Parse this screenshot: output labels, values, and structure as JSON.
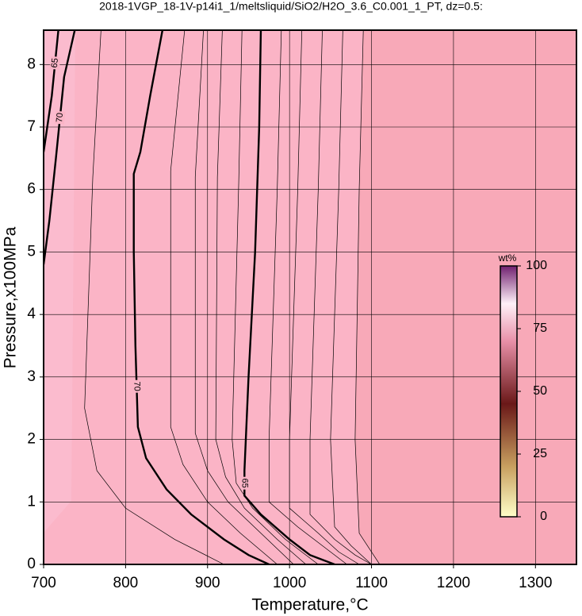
{
  "chart_data": {
    "type": "contour",
    "title": "2018-1VGP_18-1V-p14i1_1/meltsliquid/SiO2/H2O_3.6_C0.001_1_PT, dz=0.5:",
    "x_label": "Temperature,°C",
    "y_label": "Pressure,x100MPa",
    "xlim": [
      700,
      1350
    ],
    "ylim": [
      0,
      8.55
    ],
    "xticks": [
      700,
      800,
      900,
      1000,
      1100,
      1200,
      1300
    ],
    "yticks": [
      0,
      1,
      2,
      3,
      4,
      5,
      6,
      7,
      8
    ],
    "grid": true,
    "contours": [
      {
        "level": 70,
        "style": "bold",
        "x": [
          845,
          830,
          818,
          810,
          810,
          812,
          815,
          825,
          850,
          880,
          920,
          950,
          975
        ],
        "y": [
          8.55,
          7.5,
          6.6,
          6.25,
          5,
          3.5,
          2.2,
          1.7,
          1.2,
          0.8,
          0.4,
          0.15,
          0
        ]
      },
      {
        "level": 65,
        "style": "bold",
        "x": [
          965,
          963,
          958,
          950,
          945,
          945,
          965,
          1000,
          1025,
          1055
        ],
        "y": [
          8.55,
          7,
          5,
          3,
          1.5,
          1.1,
          0.8,
          0.4,
          0.15,
          0
        ]
      },
      {
        "level": 70,
        "style": "bold",
        "x": [
          738,
          725,
          715,
          707,
          700
        ],
        "y": [
          8.55,
          7.8,
          6.5,
          5.5,
          4.8
        ]
      },
      {
        "level": 65,
        "style": "bold",
        "x": [
          718,
          710,
          700
        ],
        "y": [
          8.55,
          7.5,
          6.6
        ]
      },
      {
        "style": "thin",
        "x": [
          770,
          760,
          750,
          765,
          800,
          860,
          920
        ],
        "y": [
          8.55,
          6.2,
          2.5,
          1.5,
          0.9,
          0.4,
          0
        ]
      },
      {
        "style": "thin",
        "x": [
          872,
          855,
          855,
          870,
          900,
          940,
          985
        ],
        "y": [
          8.55,
          6.3,
          2.2,
          1.6,
          1.0,
          0.5,
          0
        ]
      },
      {
        "style": "thin",
        "x": [
          895,
          885,
          885,
          900,
          925,
          965,
          1005
        ],
        "y": [
          8.55,
          6.2,
          2.1,
          1.5,
          1.0,
          0.5,
          0
        ]
      },
      {
        "style": "thin",
        "x": [
          918,
          912,
          910,
          922,
          945,
          985,
          1020
        ],
        "y": [
          8.55,
          6.2,
          2,
          1.4,
          0.9,
          0.4,
          0
        ]
      },
      {
        "style": "thin",
        "x": [
          942,
          938,
          930,
          935,
          955,
          995,
          1035
        ],
        "y": [
          8.55,
          6.1,
          2,
          1.3,
          0.9,
          0.4,
          0
        ]
      },
      {
        "style": "thin",
        "x": [
          990,
          985,
          975,
          975,
          1010,
          1040,
          1070
        ],
        "y": [
          8.55,
          6,
          2,
          1.0,
          0.6,
          0.3,
          0
        ]
      },
      {
        "style": "thin",
        "x": [
          1015,
          1010,
          1000,
          1000,
          1035,
          1060,
          1085
        ],
        "y": [
          8.55,
          6,
          2,
          0.9,
          0.5,
          0.2,
          0
        ]
      },
      {
        "style": "thin",
        "x": [
          1040,
          1035,
          1025,
          1025,
          1055,
          1080,
          1100
        ],
        "y": [
          8.55,
          6,
          2,
          0.8,
          0.4,
          0.15,
          0
        ]
      },
      {
        "style": "thin",
        "x": [
          1065,
          1060,
          1050,
          1055,
          1075,
          1100
        ],
        "y": [
          8.55,
          6,
          2,
          0.6,
          0.3,
          0
        ]
      },
      {
        "style": "thin",
        "x": [
          1090,
          1085,
          1080,
          1085,
          1100,
          1110
        ],
        "y": [
          8.55,
          6,
          2,
          0.5,
          0.2,
          0
        ]
      }
    ],
    "colorbar": {
      "label": "wt%",
      "lim": [
        0,
        100
      ],
      "ticks": [
        0,
        25,
        50,
        75,
        100
      ]
    }
  }
}
